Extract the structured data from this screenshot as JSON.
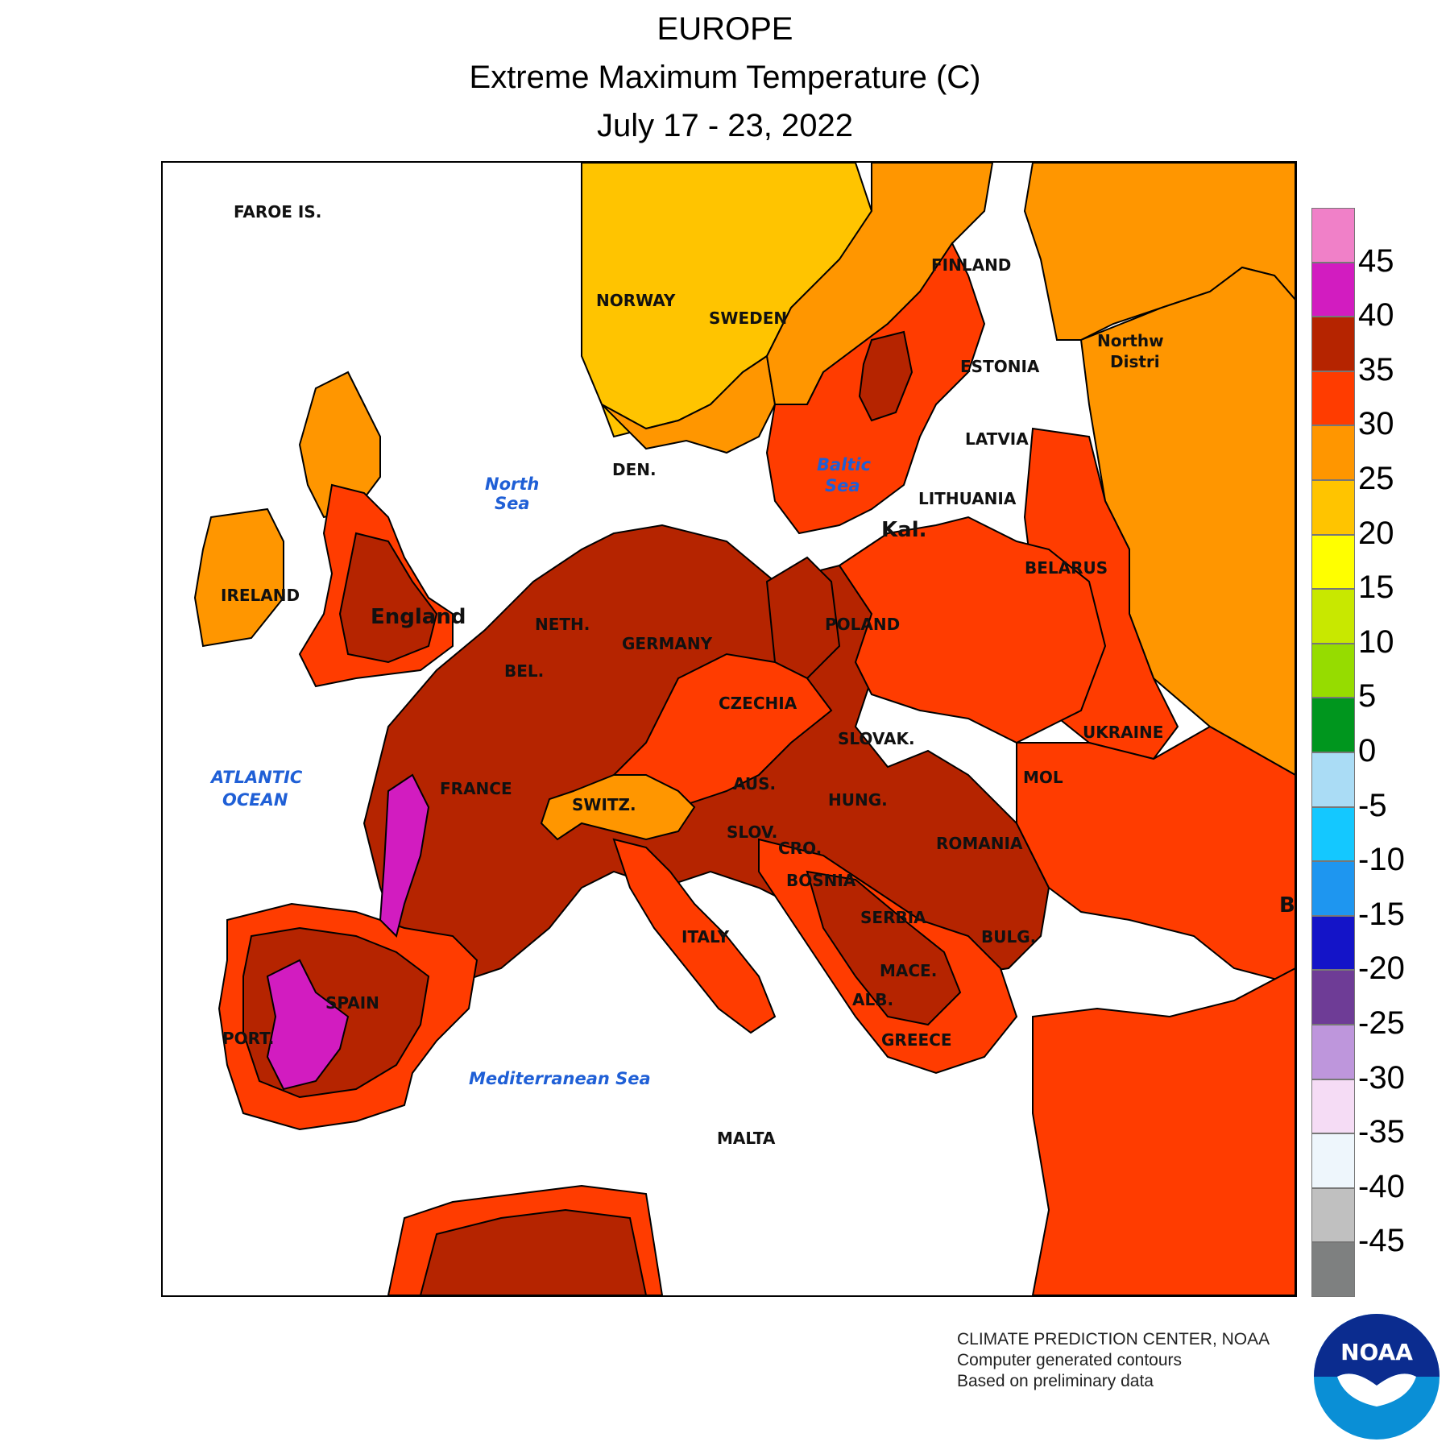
{
  "title": {
    "region": "EUROPE",
    "variable": "Extreme Maximum Temperature (C)",
    "period": "July 17 - 23, 2022"
  },
  "legend": {
    "swatches": [
      {
        "color": "#f080c8",
        "range": ">45"
      },
      {
        "color": "#d21cc0",
        "range": "40-45"
      },
      {
        "color": "#b52400",
        "range": "35-40"
      },
      {
        "color": "#ff3c00",
        "range": "30-35"
      },
      {
        "color": "#ff9600",
        "range": "25-30"
      },
      {
        "color": "#ffc400",
        "range": "20-25"
      },
      {
        "color": "#ffff00",
        "range": "15-20"
      },
      {
        "color": "#c8e800",
        "range": "10-15"
      },
      {
        "color": "#96dc00",
        "range": "5-10"
      },
      {
        "color": "#00961e",
        "range": "0-5"
      },
      {
        "color": "#aadcf5",
        "range": "-5-0"
      },
      {
        "color": "#14c8ff",
        "range": "-10--5"
      },
      {
        "color": "#1e96f0",
        "range": "-15--10"
      },
      {
        "color": "#1414c8",
        "range": "-20--15"
      },
      {
        "color": "#6e3c96",
        "range": "-25--20"
      },
      {
        "color": "#be96dc",
        "range": "-30--25"
      },
      {
        "color": "#f5dcf5",
        "range": "-35--30"
      },
      {
        "color": "#eef6fc",
        "range": "-40--35"
      },
      {
        "color": "#c0c0c0",
        "range": "-45--40"
      },
      {
        "color": "#7e8080",
        "range": "<-45"
      }
    ],
    "ticks": [
      "45",
      "40",
      "35",
      "30",
      "25",
      "20",
      "15",
      "10",
      "5",
      "0",
      "-5",
      "-10",
      "-15",
      "-20",
      "-25",
      "-30",
      "-35",
      "-40",
      "-45"
    ]
  },
  "labels": {
    "faroe": "FAROE IS.",
    "norway": "NORWAY",
    "sweden": "SWEDEN",
    "finland": "FINLAND",
    "estonia": "ESTONIA",
    "latvia": "LATVIA",
    "lithuania": "LITHUANIA",
    "kal": "Kal.",
    "belarus": "BELARUS",
    "northwest": "Northw",
    "district": "Distri",
    "den": "DEN.",
    "ireland": "IRELAND",
    "england": "England",
    "neth": "NETH.",
    "germany": "GERMANY",
    "poland": "POLAND",
    "bel": "BEL.",
    "czechia": "CZECHIA",
    "slovak": "SLOVAK.",
    "ukraine": "UKRAINE",
    "france": "FRANCE",
    "aus": "AUS.",
    "hung": "HUNG.",
    "mol": "MOL",
    "switz": "SWITZ.",
    "slov": "SLOV.",
    "romania": "ROMANIA",
    "cro": "CRO.",
    "bosnia": "BOSNIA",
    "serbia": "SERBIA",
    "bulg": "BULG.",
    "italy": "ITALY",
    "mace": "MACE.",
    "alb": "ALB.",
    "spain": "SPAIN",
    "port": "PORT.",
    "greece": "GREECE",
    "malta": "MALTA",
    "b_edge": "B"
  },
  "seas": {
    "north_sea_1": "North",
    "north_sea_2": "Sea",
    "baltic_1": "Baltic",
    "baltic_2": "Sea",
    "atlantic_1": "ATLANTIC",
    "atlantic_2": "OCEAN",
    "mediterranean": "Mediterranean Sea"
  },
  "credit": {
    "line1": "CLIMATE PREDICTION CENTER, NOAA",
    "line2": "Computer generated contours",
    "line3": "Based on preliminary data"
  },
  "logo": {
    "text": "NOAA"
  }
}
